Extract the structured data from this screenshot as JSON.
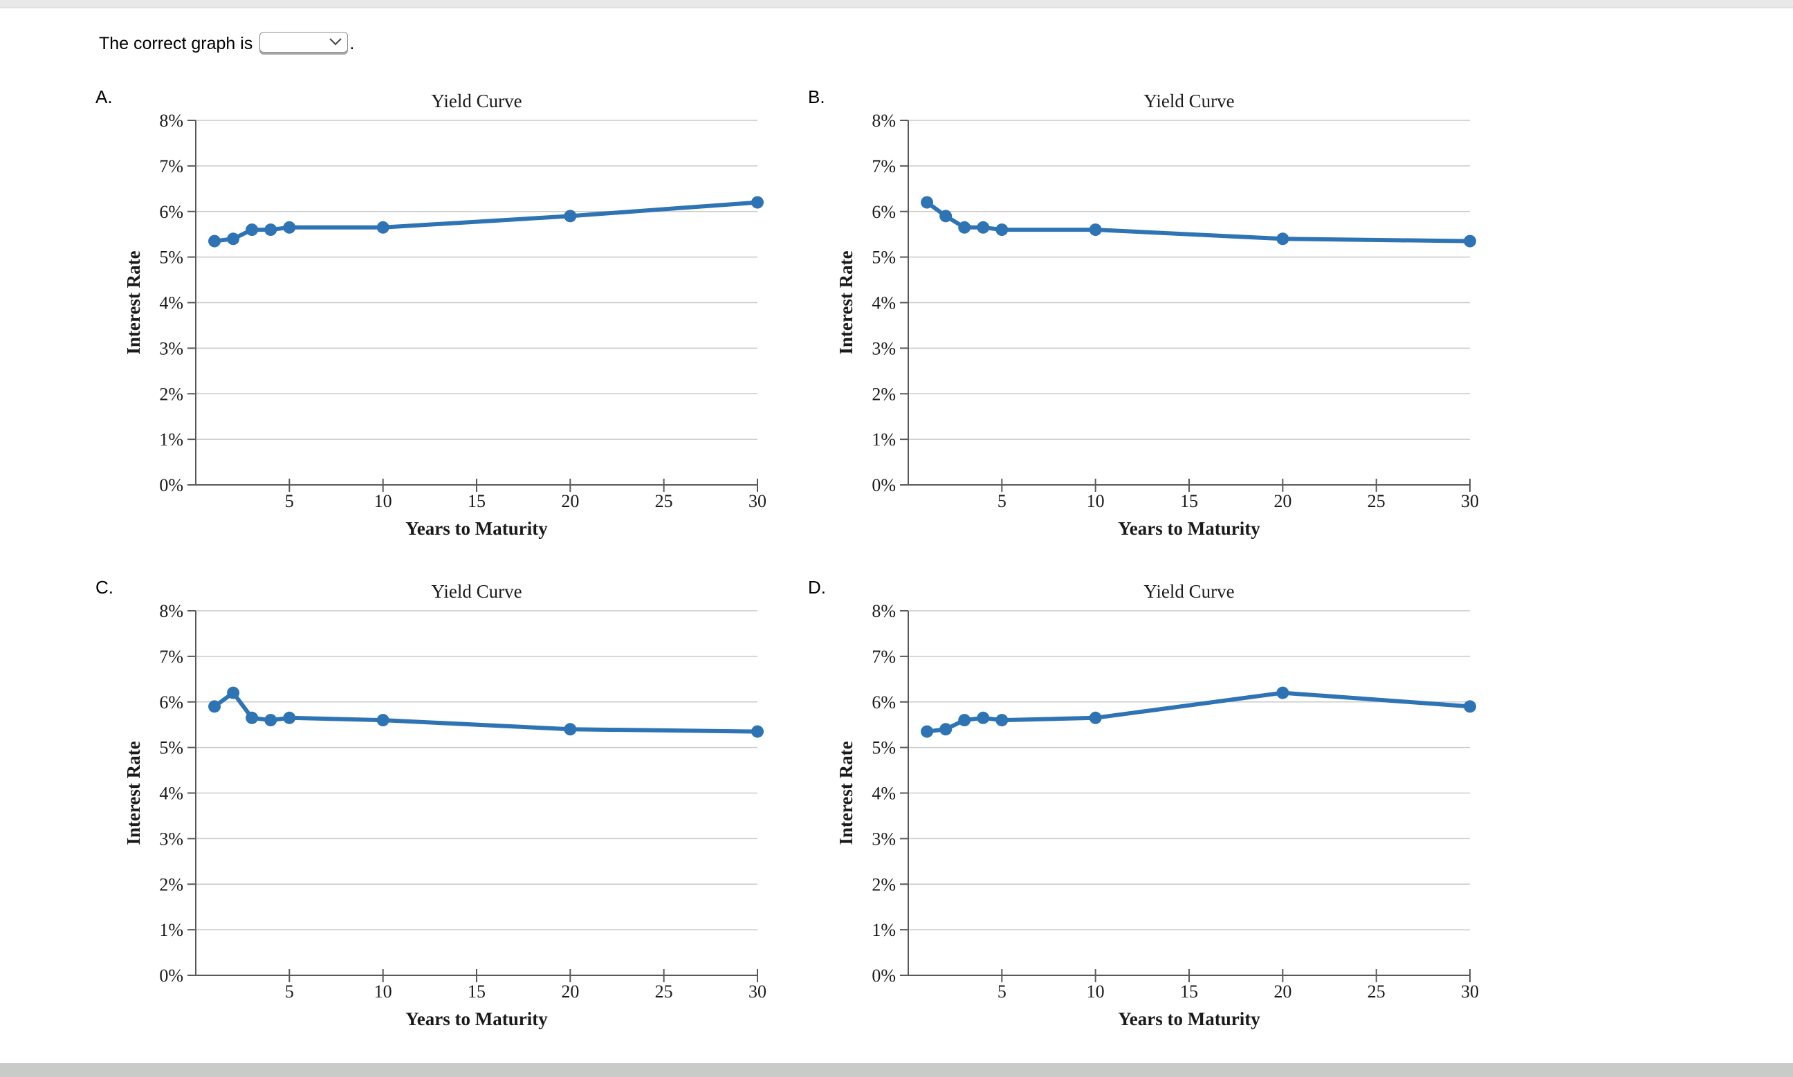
{
  "page": {
    "top_bar_color": "#e9e9e9",
    "bottom_bar_color": "#c9cbc9",
    "background": "#ffffff"
  },
  "question": {
    "text": "The correct graph is",
    "punctuation": ".",
    "dropdown_value": ""
  },
  "chart_data": [
    {
      "option_label": "A.",
      "type": "line",
      "title": "Yield Curve",
      "xlabel": "Years to Maturity",
      "ylabel": "Interest Rate",
      "x": [
        1,
        2,
        3,
        4,
        5,
        10,
        20,
        30
      ],
      "y": [
        5.35,
        5.4,
        5.6,
        5.6,
        5.65,
        5.65,
        5.9,
        6.2
      ],
      "xlim": [
        0,
        30
      ],
      "ylim": [
        0,
        8
      ],
      "xticks": [
        5,
        10,
        15,
        20,
        25,
        30
      ],
      "xtick_labels": [
        "5",
        "10",
        "15",
        "20",
        "25",
        "30"
      ],
      "yticks": [
        0,
        1,
        2,
        3,
        4,
        5,
        6,
        7,
        8
      ],
      "ytick_labels": [
        "0%",
        "1%",
        "2%",
        "3%",
        "4%",
        "5%",
        "6%",
        "7%",
        "8%"
      ],
      "grid": "horizontal",
      "legend": "none",
      "line_color": "#2e74b5"
    },
    {
      "option_label": "B.",
      "type": "line",
      "title": "Yield Curve",
      "xlabel": "Years to Maturity",
      "ylabel": "Interest Rate",
      "x": [
        1,
        2,
        3,
        4,
        5,
        10,
        20,
        30
      ],
      "y": [
        6.2,
        5.9,
        5.65,
        5.65,
        5.6,
        5.6,
        5.4,
        5.35
      ],
      "xlim": [
        0,
        30
      ],
      "ylim": [
        0,
        8
      ],
      "xticks": [
        5,
        10,
        15,
        20,
        25,
        30
      ],
      "xtick_labels": [
        "5",
        "10",
        "15",
        "20",
        "25",
        "30"
      ],
      "yticks": [
        0,
        1,
        2,
        3,
        4,
        5,
        6,
        7,
        8
      ],
      "ytick_labels": [
        "0%",
        "1%",
        "2%",
        "3%",
        "4%",
        "5%",
        "6%",
        "7%",
        "8%"
      ],
      "grid": "horizontal",
      "legend": "none",
      "line_color": "#2e74b5"
    },
    {
      "option_label": "C.",
      "type": "line",
      "title": "Yield Curve",
      "xlabel": "Years to Maturity",
      "ylabel": "Interest Rate",
      "x": [
        1,
        2,
        3,
        4,
        5,
        10,
        20,
        30
      ],
      "y": [
        5.9,
        6.2,
        5.65,
        5.6,
        5.65,
        5.6,
        5.4,
        5.35
      ],
      "xlim": [
        0,
        30
      ],
      "ylim": [
        0,
        8
      ],
      "xticks": [
        5,
        10,
        15,
        20,
        25,
        30
      ],
      "xtick_labels": [
        "5",
        "10",
        "15",
        "20",
        "25",
        "30"
      ],
      "yticks": [
        0,
        1,
        2,
        3,
        4,
        5,
        6,
        7,
        8
      ],
      "ytick_labels": [
        "0%",
        "1%",
        "2%",
        "3%",
        "4%",
        "5%",
        "6%",
        "7%",
        "8%"
      ],
      "grid": "horizontal",
      "legend": "none",
      "line_color": "#2e74b5"
    },
    {
      "option_label": "D.",
      "type": "line",
      "title": "Yield Curve",
      "xlabel": "Years to Maturity",
      "ylabel": "Interest Rate",
      "x": [
        1,
        2,
        3,
        4,
        5,
        10,
        20,
        30
      ],
      "y": [
        5.35,
        5.4,
        5.6,
        5.65,
        5.6,
        5.65,
        6.2,
        5.9
      ],
      "xlim": [
        0,
        30
      ],
      "ylim": [
        0,
        8
      ],
      "xticks": [
        5,
        10,
        15,
        20,
        25,
        30
      ],
      "xtick_labels": [
        "5",
        "10",
        "15",
        "20",
        "25",
        "30"
      ],
      "yticks": [
        0,
        1,
        2,
        3,
        4,
        5,
        6,
        7,
        8
      ],
      "ytick_labels": [
        "0%",
        "1%",
        "2%",
        "3%",
        "4%",
        "5%",
        "6%",
        "7%",
        "8%"
      ],
      "grid": "horizontal",
      "legend": "none",
      "line_color": "#2e74b5"
    }
  ]
}
